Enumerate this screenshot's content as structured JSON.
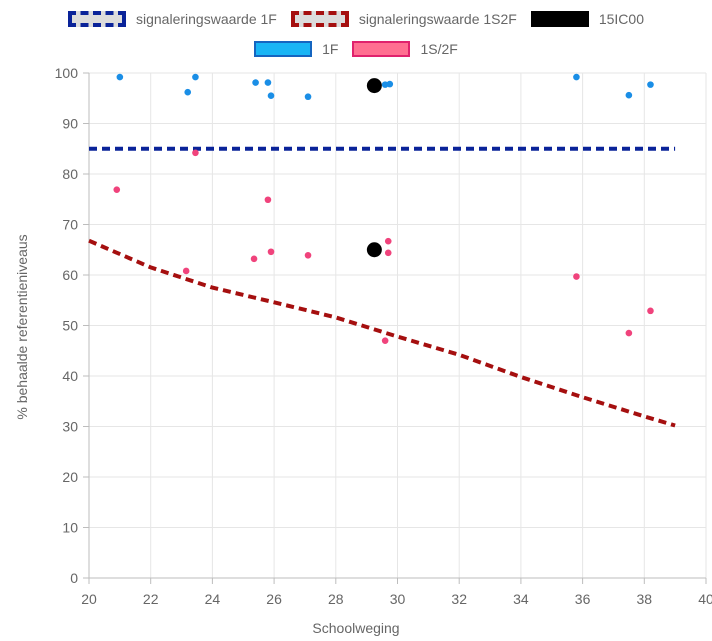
{
  "chart_data": {
    "type": "scatter",
    "xlabel": "Schoolweging",
    "ylabel": "% behaalde referentieniveaus",
    "xlim": [
      20,
      40
    ],
    "ylim": [
      0,
      100
    ],
    "xticks": [
      "20",
      "22",
      "24",
      "26",
      "28",
      "30",
      "32",
      "34",
      "36",
      "38",
      "40"
    ],
    "yticks": [
      "0",
      "10",
      "20",
      "30",
      "40",
      "50",
      "60",
      "70",
      "80",
      "90",
      "100"
    ],
    "grid": true,
    "legend": {
      "placement": "top",
      "items": [
        {
          "label": "signaleringswaarde 1F",
          "fill": "#dcdcdc",
          "border": "#0a2399",
          "style": "dashed"
        },
        {
          "label": "signaleringswaarde 1S2F",
          "fill": "#dcdcdc",
          "border": "#a50f0f",
          "style": "dashed"
        },
        {
          "label": "15IC00",
          "fill": "#000000",
          "border": "#000000",
          "style": "solid"
        },
        {
          "label": "1F",
          "fill": "#19b5f5",
          "border": "#1565c0",
          "style": "solid"
        },
        {
          "label": "1S/2F",
          "fill": "#ff6f91",
          "border": "#e0226d",
          "style": "solid"
        }
      ]
    },
    "series": [
      {
        "name": "signaleringswaarde 1F",
        "kind": "line",
        "color": "#0a2399",
        "points": [
          [
            20,
            85
          ],
          [
            39,
            85
          ]
        ]
      },
      {
        "name": "signaleringswaarde 1S2F",
        "kind": "line",
        "color": "#a50f0f",
        "points": [
          [
            20,
            66.8
          ],
          [
            22,
            61.5
          ],
          [
            24,
            57.5
          ],
          [
            26,
            54.6
          ],
          [
            28,
            51.6
          ],
          [
            30,
            47.8
          ],
          [
            32,
            44.2
          ],
          [
            34,
            39.8
          ],
          [
            36,
            35.8
          ],
          [
            38,
            32.0
          ],
          [
            39,
            30.2
          ]
        ]
      },
      {
        "name": "1F",
        "kind": "scatter",
        "color": "#1a8ee6",
        "points": [
          [
            21,
            99.2
          ],
          [
            23.2,
            96.2
          ],
          [
            23.45,
            99.2
          ],
          [
            25.4,
            98.1
          ],
          [
            25.8,
            98.1
          ],
          [
            25.9,
            95.5
          ],
          [
            27.1,
            95.3
          ],
          [
            29.6,
            97.7
          ],
          [
            29.75,
            97.8
          ],
          [
            35.8,
            99.2
          ],
          [
            37.5,
            95.6
          ],
          [
            38.2,
            97.7
          ]
        ]
      },
      {
        "name": "1S/2F",
        "kind": "scatter",
        "color": "#f0437c",
        "points": [
          [
            20.9,
            76.9
          ],
          [
            23.15,
            60.8
          ],
          [
            23.45,
            84.2
          ],
          [
            25.35,
            63.2
          ],
          [
            25.8,
            74.9
          ],
          [
            25.9,
            64.6
          ],
          [
            27.1,
            63.9
          ],
          [
            29.6,
            47.0
          ],
          [
            29.7,
            64.4
          ],
          [
            29.7,
            66.7
          ],
          [
            35.8,
            59.7
          ],
          [
            37.5,
            48.5
          ],
          [
            38.2,
            52.9
          ]
        ]
      },
      {
        "name": "15IC00",
        "kind": "scatter",
        "color": "#000000",
        "points": [
          [
            29.25,
            97.5
          ],
          [
            29.25,
            65.0
          ]
        ]
      }
    ]
  }
}
